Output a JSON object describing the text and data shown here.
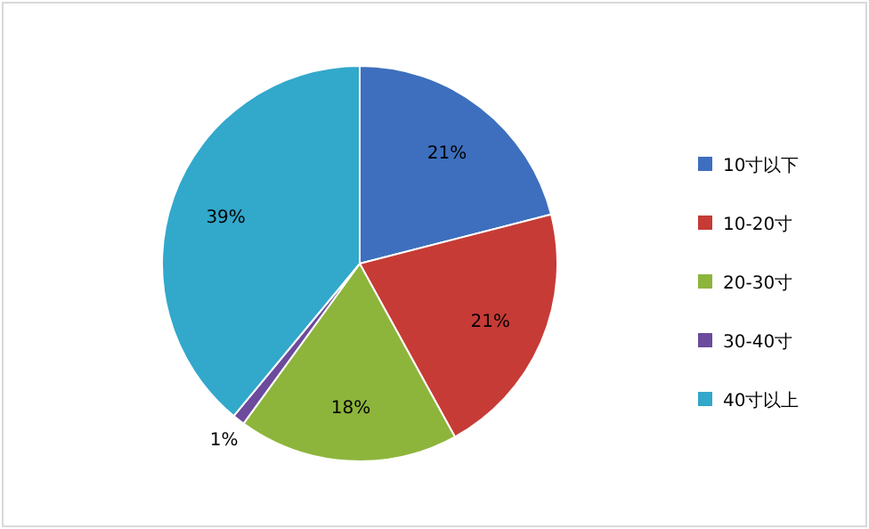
{
  "chart_data": {
    "type": "pie",
    "categories": [
      "10寸以下",
      "10-20寸",
      "20-30寸",
      "30-40寸",
      "40寸以上"
    ],
    "values": [
      21,
      21,
      18,
      1,
      39
    ],
    "value_labels": [
      "21%",
      "21%",
      "18%",
      "1%",
      "39%"
    ],
    "colors": [
      "#3d6fbe",
      "#c63b36",
      "#8db53c",
      "#6c4a9c",
      "#32a8cb"
    ],
    "legend": "right"
  }
}
